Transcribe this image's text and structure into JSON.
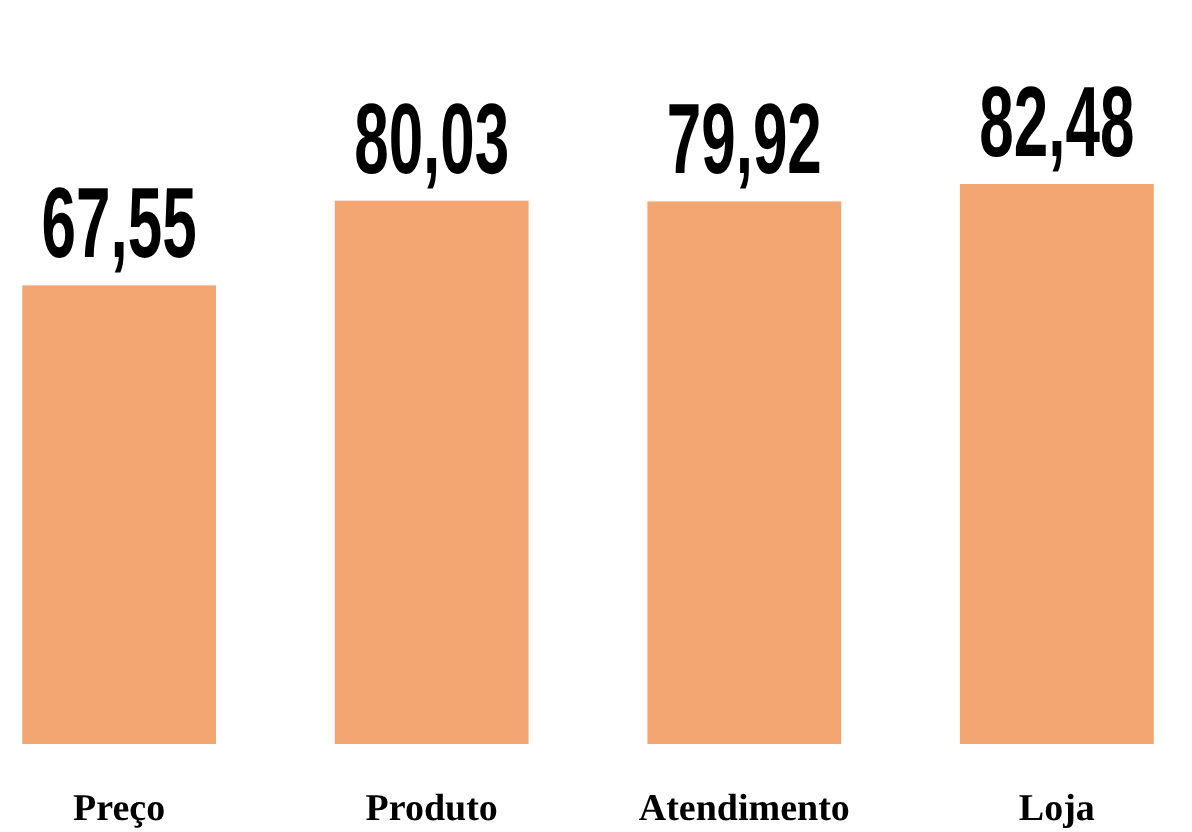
{
  "chart_data": {
    "type": "bar",
    "categories": [
      "Preço",
      "Produto",
      "Atendimento",
      "Loja"
    ],
    "values": [
      67.55,
      80.03,
      79.92,
      82.48
    ],
    "value_labels": [
      "67,55",
      "80,03",
      "79,92",
      "82,48"
    ],
    "color": "#f4a672"
  }
}
